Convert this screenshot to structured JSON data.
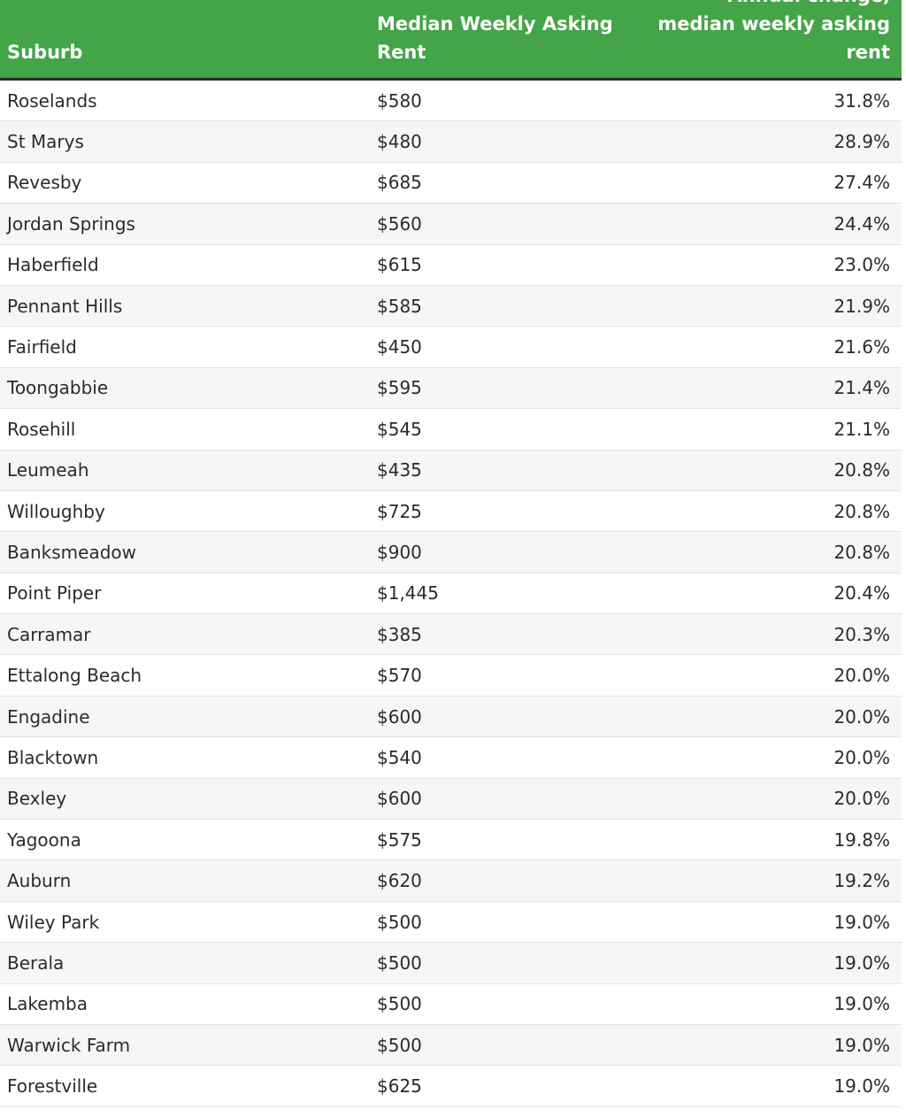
{
  "chart_data": {
    "type": "table",
    "columns": [
      "Suburb",
      "Median Weekly Asking Rent",
      "Annual change, median weekly asking rent"
    ],
    "rows": [
      [
        "Roselands",
        "$580",
        "31.8%"
      ],
      [
        "St Marys",
        "$480",
        "28.9%"
      ],
      [
        "Revesby",
        "$685",
        "27.4%"
      ],
      [
        "Jordan Springs",
        "$560",
        "24.4%"
      ],
      [
        "Haberfield",
        "$615",
        "23.0%"
      ],
      [
        "Pennant Hills",
        "$585",
        "21.9%"
      ],
      [
        "Fairfield",
        "$450",
        "21.6%"
      ],
      [
        "Toongabbie",
        "$595",
        "21.4%"
      ],
      [
        "Rosehill",
        "$545",
        "21.1%"
      ],
      [
        "Leumeah",
        "$435",
        "20.8%"
      ],
      [
        "Willoughby",
        "$725",
        "20.8%"
      ],
      [
        "Banksmeadow",
        "$900",
        "20.8%"
      ],
      [
        "Point Piper",
        "$1,445",
        "20.4%"
      ],
      [
        "Carramar",
        "$385",
        "20.3%"
      ],
      [
        "Ettalong Beach",
        "$570",
        "20.0%"
      ],
      [
        "Engadine",
        "$600",
        "20.0%"
      ],
      [
        "Blacktown",
        "$540",
        "20.0%"
      ],
      [
        "Bexley",
        "$600",
        "20.0%"
      ],
      [
        "Yagoona",
        "$575",
        "19.8%"
      ],
      [
        "Auburn",
        "$620",
        "19.2%"
      ],
      [
        "Wiley Park",
        "$500",
        "19.0%"
      ],
      [
        "Berala",
        "$500",
        "19.0%"
      ],
      [
        "Lakemba",
        "$500",
        "19.0%"
      ],
      [
        "Warwick Farm",
        "$500",
        "19.0%"
      ],
      [
        "Forestville",
        "$625",
        "19.0%"
      ]
    ]
  },
  "colors": {
    "header_background": "#44a448",
    "header_text": "#ffffff",
    "row_alt_background": "#f6f6f6",
    "text": "#2b2b2b"
  }
}
